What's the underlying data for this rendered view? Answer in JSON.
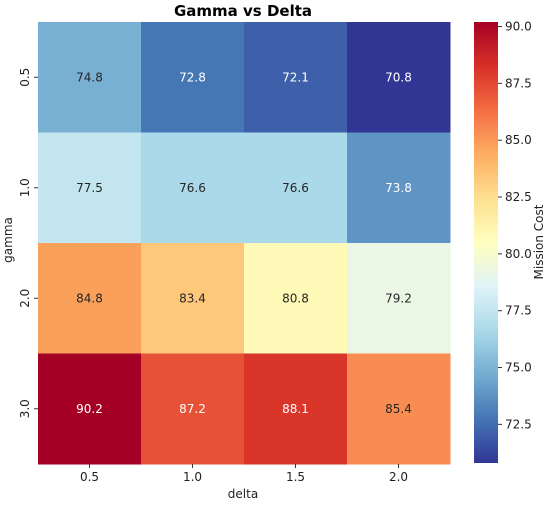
{
  "chart_data": {
    "type": "heatmap",
    "title": "Gamma vs Delta",
    "xlabel": "delta",
    "ylabel": "gamma",
    "x_categories": [
      "0.5",
      "1.0",
      "1.5",
      "2.0"
    ],
    "y_categories": [
      "0.5",
      "1.0",
      "2.0",
      "3.0"
    ],
    "values": [
      [
        74.8,
        72.8,
        72.1,
        70.8
      ],
      [
        77.5,
        76.6,
        76.6,
        73.8
      ],
      [
        84.8,
        83.4,
        80.8,
        79.2
      ],
      [
        90.2,
        87.2,
        88.1,
        85.4
      ]
    ],
    "value_labels": [
      [
        "74.8",
        "72.8",
        "72.1",
        "70.8"
      ],
      [
        "77.5",
        "76.6",
        "76.6",
        "73.8"
      ],
      [
        "84.8",
        "83.4",
        "80.8",
        "79.2"
      ],
      [
        "90.2",
        "87.2",
        "88.1",
        "85.4"
      ]
    ],
    "colormap": "RdYlBu_r",
    "color_range": [
      70.8,
      90.2
    ],
    "colorbar": {
      "label": "Mission Cost",
      "ticks": [
        "72.5",
        "75.0",
        "77.5",
        "80.0",
        "82.5",
        "85.0",
        "87.5",
        "90.0"
      ],
      "tick_values": [
        72.5,
        75.0,
        77.5,
        80.0,
        82.5,
        85.0,
        87.5,
        90.0
      ]
    },
    "grid": false
  }
}
